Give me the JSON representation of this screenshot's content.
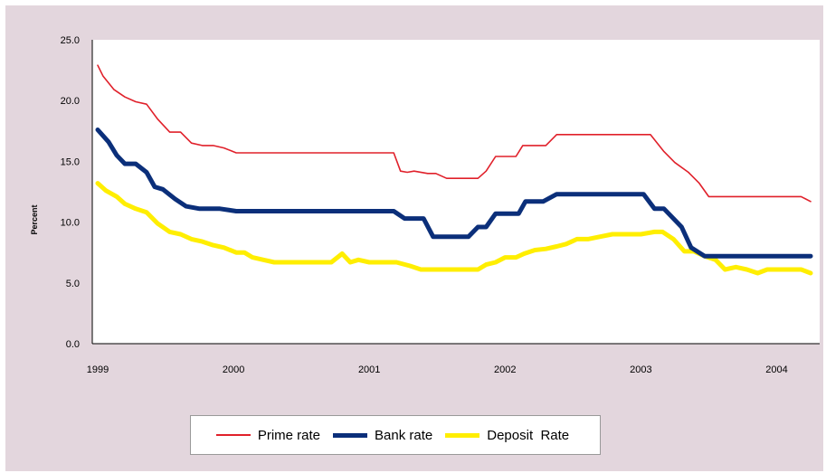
{
  "chart_data": {
    "type": "line",
    "xlabel": "",
    "ylabel": "Percent",
    "ylim": [
      0,
      25
    ],
    "yticks": [
      "0.0",
      "5.0",
      "10.0",
      "15.0",
      "20.0",
      "25.0"
    ],
    "xlim": [
      1999.0,
      2004.25
    ],
    "xticks": [
      "1999",
      "2000",
      "2001",
      "2002",
      "2003",
      "2004"
    ],
    "grid": false,
    "legend": "bottom",
    "series": [
      {
        "name": "Prime rate",
        "color": "#e0202a",
        "points": [
          [
            1999.0,
            22.9
          ],
          [
            1999.04,
            22.0
          ],
          [
            1999.12,
            20.9
          ],
          [
            1999.2,
            20.3
          ],
          [
            1999.28,
            19.9
          ],
          [
            1999.36,
            19.7
          ],
          [
            1999.44,
            18.5
          ],
          [
            1999.53,
            17.4
          ],
          [
            1999.61,
            17.4
          ],
          [
            1999.69,
            16.5
          ],
          [
            1999.77,
            16.3
          ],
          [
            1999.85,
            16.3
          ],
          [
            1999.93,
            16.1
          ],
          [
            2000.02,
            15.7
          ],
          [
            2000.1,
            15.7
          ],
          [
            2000.5,
            15.7
          ],
          [
            2000.9,
            15.7
          ],
          [
            2001.18,
            15.7
          ],
          [
            2001.23,
            14.2
          ],
          [
            2001.28,
            14.1
          ],
          [
            2001.33,
            14.2
          ],
          [
            2001.43,
            14.0
          ],
          [
            2001.49,
            14.0
          ],
          [
            2001.57,
            13.6
          ],
          [
            2001.65,
            13.6
          ],
          [
            2001.75,
            13.6
          ],
          [
            2001.8,
            13.6
          ],
          [
            2001.86,
            14.2
          ],
          [
            2001.93,
            15.4
          ],
          [
            2002.0,
            15.4
          ],
          [
            2002.08,
            15.4
          ],
          [
            2002.13,
            16.3
          ],
          [
            2002.2,
            16.3
          ],
          [
            2002.3,
            16.3
          ],
          [
            2002.38,
            17.2
          ],
          [
            2002.5,
            17.2
          ],
          [
            2002.8,
            17.2
          ],
          [
            2003.07,
            17.2
          ],
          [
            2003.17,
            15.8
          ],
          [
            2003.25,
            14.9
          ],
          [
            2003.35,
            14.1
          ],
          [
            2003.43,
            13.2
          ],
          [
            2003.5,
            12.1
          ],
          [
            2003.6,
            12.1
          ],
          [
            2003.8,
            12.1
          ],
          [
            2004.1,
            12.1
          ],
          [
            2004.18,
            12.1
          ],
          [
            2004.25,
            11.7
          ]
        ]
      },
      {
        "name": "Bank rate",
        "color": "#0b2f7a",
        "points": [
          [
            1999.0,
            17.6
          ],
          [
            1999.08,
            16.6
          ],
          [
            1999.14,
            15.5
          ],
          [
            1999.2,
            14.8
          ],
          [
            1999.28,
            14.8
          ],
          [
            1999.36,
            14.1
          ],
          [
            1999.42,
            12.9
          ],
          [
            1999.48,
            12.7
          ],
          [
            1999.57,
            11.9
          ],
          [
            1999.65,
            11.3
          ],
          [
            1999.75,
            11.1
          ],
          [
            1999.9,
            11.1
          ],
          [
            2000.02,
            10.9
          ],
          [
            2000.2,
            10.9
          ],
          [
            2000.5,
            10.9
          ],
          [
            2000.8,
            10.9
          ],
          [
            2001.0,
            10.9
          ],
          [
            2001.18,
            10.9
          ],
          [
            2001.26,
            10.3
          ],
          [
            2001.34,
            10.3
          ],
          [
            2001.4,
            10.3
          ],
          [
            2001.47,
            8.8
          ],
          [
            2001.53,
            8.8
          ],
          [
            2001.7,
            8.8
          ],
          [
            2001.73,
            8.8
          ],
          [
            2001.8,
            9.6
          ],
          [
            2001.86,
            9.6
          ],
          [
            2001.93,
            10.7
          ],
          [
            2002.0,
            10.7
          ],
          [
            2002.1,
            10.7
          ],
          [
            2002.15,
            11.7
          ],
          [
            2002.28,
            11.7
          ],
          [
            2002.38,
            12.3
          ],
          [
            2002.6,
            12.3
          ],
          [
            2002.9,
            12.3
          ],
          [
            2003.02,
            12.3
          ],
          [
            2003.1,
            11.1
          ],
          [
            2003.17,
            11.1
          ],
          [
            2003.3,
            9.6
          ],
          [
            2003.37,
            7.9
          ],
          [
            2003.47,
            7.2
          ],
          [
            2003.7,
            7.2
          ],
          [
            2004.0,
            7.2
          ],
          [
            2004.25,
            7.2
          ]
        ]
      },
      {
        "name": "Deposit  Rate",
        "color": "#ffee00",
        "points": [
          [
            1999.0,
            13.2
          ],
          [
            1999.06,
            12.6
          ],
          [
            1999.14,
            12.1
          ],
          [
            1999.2,
            11.5
          ],
          [
            1999.28,
            11.1
          ],
          [
            1999.36,
            10.8
          ],
          [
            1999.44,
            9.9
          ],
          [
            1999.53,
            9.2
          ],
          [
            1999.61,
            9.0
          ],
          [
            1999.69,
            8.6
          ],
          [
            1999.77,
            8.4
          ],
          [
            1999.85,
            8.1
          ],
          [
            1999.93,
            7.9
          ],
          [
            2000.02,
            7.5
          ],
          [
            2000.08,
            7.5
          ],
          [
            2000.14,
            7.1
          ],
          [
            2000.22,
            6.9
          ],
          [
            2000.3,
            6.7
          ],
          [
            2000.5,
            6.7
          ],
          [
            2000.72,
            6.7
          ],
          [
            2000.8,
            7.4
          ],
          [
            2000.86,
            6.7
          ],
          [
            2000.92,
            6.9
          ],
          [
            2001.0,
            6.7
          ],
          [
            2001.2,
            6.7
          ],
          [
            2001.3,
            6.4
          ],
          [
            2001.38,
            6.1
          ],
          [
            2001.6,
            6.1
          ],
          [
            2001.8,
            6.1
          ],
          [
            2001.86,
            6.5
          ],
          [
            2001.93,
            6.7
          ],
          [
            2002.0,
            7.1
          ],
          [
            2002.08,
            7.1
          ],
          [
            2002.14,
            7.4
          ],
          [
            2002.22,
            7.7
          ],
          [
            2002.3,
            7.8
          ],
          [
            2002.38,
            8.0
          ],
          [
            2002.45,
            8.2
          ],
          [
            2002.53,
            8.6
          ],
          [
            2002.61,
            8.6
          ],
          [
            2002.7,
            8.8
          ],
          [
            2002.79,
            9.0
          ],
          [
            2002.9,
            9.0
          ],
          [
            2003.0,
            9.0
          ],
          [
            2003.1,
            9.2
          ],
          [
            2003.16,
            9.2
          ],
          [
            2003.24,
            8.6
          ],
          [
            2003.32,
            7.6
          ],
          [
            2003.39,
            7.6
          ],
          [
            2003.47,
            7.2
          ],
          [
            2003.55,
            6.9
          ],
          [
            2003.62,
            6.1
          ],
          [
            2003.7,
            6.3
          ],
          [
            2003.78,
            6.1
          ],
          [
            2003.86,
            5.8
          ],
          [
            2003.93,
            6.1
          ],
          [
            2004.0,
            6.1
          ],
          [
            2004.18,
            6.1
          ],
          [
            2004.25,
            5.8
          ]
        ]
      }
    ]
  }
}
